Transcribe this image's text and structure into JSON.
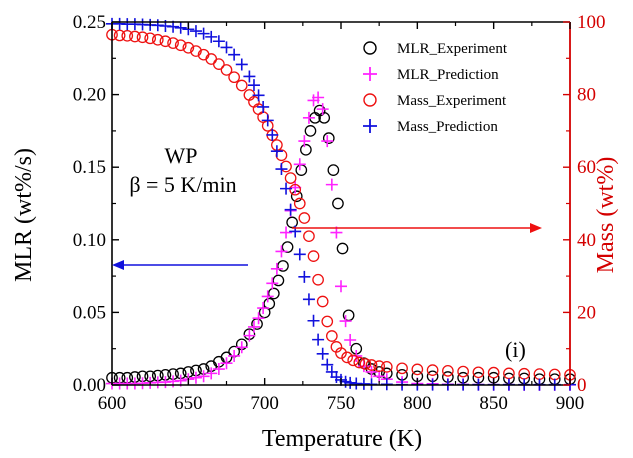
{
  "chart_data": {
    "type": "scatter",
    "xlabel": "Temperature (K)",
    "ylabel": "MLR (wt%/s)",
    "y2label": "Mass (wt%)",
    "xlim": [
      600,
      900
    ],
    "ylim": [
      0,
      0.25
    ],
    "y2lim": [
      0,
      100
    ],
    "xticks": [
      "600",
      "650",
      "700",
      "750",
      "800",
      "850",
      "900"
    ],
    "yticks": [
      "0.00",
      "0.05",
      "0.10",
      "0.15",
      "0.20",
      "0.25"
    ],
    "y2ticks": [
      "0",
      "20",
      "40",
      "60",
      "80",
      "100"
    ],
    "grid": false,
    "legend_position": "top-right",
    "annotations": [
      "WP",
      "β = 5 K/min",
      "(i)"
    ],
    "colors": {
      "mlr_exp": "#000000",
      "mlr_pred": "#ff22ff",
      "mass_exp": "#ee1111",
      "mass_pred": "#1111dd",
      "right_axis": "#d40000"
    },
    "series": [
      {
        "name": "MLR_Experiment",
        "marker": "circle",
        "axis": "left",
        "x": [
          600,
          605,
          610,
          615,
          620,
          625,
          630,
          635,
          640,
          645,
          650,
          655,
          660,
          665,
          670,
          675,
          680,
          685,
          690,
          695,
          700,
          703,
          706,
          709,
          712,
          715,
          718,
          721,
          724,
          727,
          730,
          733,
          736,
          739,
          742,
          745,
          748,
          751,
          755,
          760,
          765,
          770,
          775,
          780,
          790,
          800,
          810,
          820,
          830,
          840,
          850,
          860,
          870,
          880,
          890,
          900
        ],
        "y": [
          0.005,
          0.005,
          0.005,
          0.0055,
          0.006,
          0.006,
          0.0065,
          0.007,
          0.0075,
          0.008,
          0.009,
          0.01,
          0.011,
          0.013,
          0.016,
          0.019,
          0.023,
          0.028,
          0.035,
          0.042,
          0.05,
          0.056,
          0.063,
          0.072,
          0.082,
          0.095,
          0.112,
          0.13,
          0.148,
          0.162,
          0.175,
          0.184,
          0.189,
          0.184,
          0.17,
          0.148,
          0.125,
          0.094,
          0.048,
          0.025,
          0.015,
          0.011,
          0.009,
          0.008,
          0.007,
          0.006,
          0.006,
          0.0055,
          0.005,
          0.005,
          0.005,
          0.0045,
          0.0045,
          0.004,
          0.004,
          0.004
        ]
      },
      {
        "name": "MLR_Prediction",
        "marker": "plus",
        "axis": "left",
        "x": [
          600,
          605,
          610,
          615,
          620,
          625,
          630,
          635,
          640,
          645,
          650,
          655,
          660,
          665,
          670,
          675,
          680,
          685,
          690,
          693,
          696,
          699,
          702,
          705,
          708,
          711,
          714,
          717,
          720,
          723,
          726,
          729,
          732,
          735,
          738,
          741,
          744,
          747,
          750,
          753,
          756,
          760,
          765,
          770,
          775,
          780,
          790,
          800,
          810,
          820,
          830,
          840,
          850,
          860,
          870,
          880,
          890,
          900
        ],
        "y": [
          0.001,
          0.001,
          0.001,
          0.001,
          0.0012,
          0.0015,
          0.0018,
          0.002,
          0.0025,
          0.003,
          0.004,
          0.005,
          0.006,
          0.008,
          0.011,
          0.015,
          0.02,
          0.026,
          0.034,
          0.04,
          0.046,
          0.053,
          0.061,
          0.07,
          0.08,
          0.092,
          0.105,
          0.12,
          0.136,
          0.152,
          0.168,
          0.184,
          0.196,
          0.198,
          0.19,
          0.168,
          0.138,
          0.105,
          0.068,
          0.044,
          0.031,
          0.02,
          0.013,
          0.009,
          0.006,
          0.004,
          0.002,
          0.001,
          0.0008,
          0.0005,
          0.0004,
          0.0003,
          0.0002,
          0.0002,
          0.0001,
          0.0001,
          0.0001,
          0.0001
        ]
      },
      {
        "name": "Mass_Experiment",
        "marker": "circle",
        "axis": "right",
        "x": [
          600,
          605,
          610,
          615,
          620,
          625,
          630,
          635,
          640,
          645,
          650,
          655,
          660,
          665,
          670,
          675,
          680,
          685,
          690,
          693,
          696,
          699,
          702,
          705,
          708,
          711,
          714,
          717,
          720,
          723,
          726,
          729,
          732,
          735,
          738,
          741,
          744,
          747,
          750,
          754,
          758,
          762,
          766,
          770,
          775,
          780,
          790,
          800,
          810,
          820,
          830,
          840,
          850,
          860,
          870,
          880,
          890,
          900
        ],
        "y": [
          96.5,
          96.3,
          96.2,
          96.0,
          95.8,
          95.5,
          95.1,
          94.7,
          94.2,
          93.6,
          92.9,
          92.0,
          91.0,
          89.8,
          88.4,
          86.8,
          84.8,
          82.5,
          79.9,
          78.0,
          76.0,
          73.8,
          71.4,
          68.8,
          66.1,
          63.3,
          60.2,
          57.0,
          53.8,
          50.0,
          46.0,
          41.0,
          35.5,
          29.0,
          23.0,
          17.5,
          13.5,
          10.5,
          8.8,
          7.6,
          6.8,
          6.2,
          5.8,
          5.5,
          5.2,
          5.0,
          4.6,
          4.3,
          4.1,
          3.9,
          3.7,
          3.5,
          3.4,
          3.2,
          3.1,
          3.0,
          2.9,
          2.8
        ]
      },
      {
        "name": "Mass_Prediction",
        "marker": "plus",
        "axis": "right",
        "x": [
          600,
          605,
          610,
          615,
          620,
          625,
          630,
          635,
          640,
          645,
          650,
          655,
          660,
          665,
          670,
          675,
          680,
          685,
          690,
          693,
          696,
          699,
          702,
          705,
          708,
          711,
          714,
          717,
          720,
          723,
          726,
          729,
          732,
          735,
          738,
          741,
          744,
          747,
          750,
          753,
          756,
          760,
          765,
          770,
          780,
          790,
          800,
          810,
          820,
          830,
          840,
          850,
          860,
          870,
          880,
          890,
          900
        ],
        "y": [
          99.5,
          99.5,
          99.4,
          99.4,
          99.3,
          99.2,
          99.1,
          98.9,
          98.7,
          98.4,
          98.0,
          97.5,
          96.8,
          95.9,
          94.7,
          93.0,
          91.0,
          88.3,
          85.0,
          82.6,
          79.8,
          76.6,
          72.9,
          68.9,
          64.4,
          59.5,
          54.1,
          48.3,
          42.3,
          36.0,
          29.8,
          23.6,
          17.7,
          12.5,
          8.6,
          5.6,
          3.6,
          2.2,
          1.4,
          0.9,
          0.6,
          0.4,
          0.3,
          0.2,
          0.2,
          0.1,
          0.1,
          0.1,
          0.1,
          0.1,
          0.1,
          0.1,
          0.1,
          0.1,
          0.1,
          0.1,
          0.1
        ]
      }
    ]
  }
}
